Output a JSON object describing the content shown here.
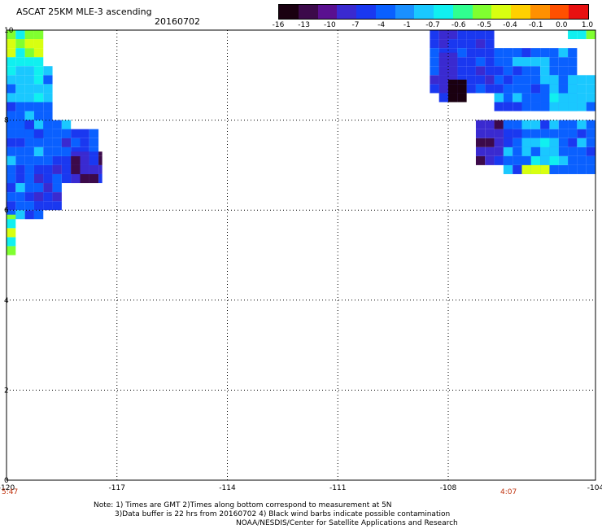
{
  "header": {
    "title": "ASCAT 25KM MLE-3 ascending",
    "date": "20160702"
  },
  "colorbar": {
    "labels": [
      "-16",
      "-13",
      "-10",
      "-7",
      "-4",
      "-1",
      "-0.7",
      "-0.6",
      "-0.5",
      "-0.4",
      "-0.1",
      "0.0",
      "1.0"
    ],
    "colors": [
      "#1a0010",
      "#3c0a4a",
      "#5a1090",
      "#3a2ad0",
      "#1a38f0",
      "#0a60ff",
      "#1a90ff",
      "#1ac8ff",
      "#10f0f0",
      "#30ff90",
      "#80ff30",
      "#d8ff10",
      "#ffd000",
      "#ff9000",
      "#ff5000",
      "#e81010"
    ]
  },
  "chart_data": {
    "type": "heatmap",
    "title": "ASCAT 25KM MLE-3 ascending",
    "subtitle": "20160702",
    "xlabel": "",
    "ylabel": "",
    "xlim": [
      -120,
      -104
    ],
    "ylim": [
      0,
      10
    ],
    "x_ticks": [
      -120,
      -117,
      -114,
      -111,
      -108,
      -104
    ],
    "y_ticks": [
      0,
      2,
      4,
      6,
      8,
      10
    ],
    "x_tick_labels": [
      "-120",
      "-117",
      "-114",
      "-111",
      "-108",
      "-104"
    ],
    "y_tick_labels": [
      "0",
      "2",
      "4",
      "6",
      "8",
      "10"
    ],
    "grid": true,
    "scale": [
      -16,
      -13,
      -10,
      -7,
      -4,
      -1,
      -0.7,
      -0.6,
      -0.5,
      -0.4,
      -0.1,
      0.0,
      1.0
    ],
    "cell_size_deg": 0.25,
    "regions": [
      {
        "lon": [
          -120,
          -119.0
        ],
        "lat": [
          9.2,
          10.0
        ],
        "value": -0.6
      },
      {
        "lon": [
          -120,
          -118.75
        ],
        "lat": [
          8.4,
          9.2
        ],
        "value": -1
      },
      {
        "lon": [
          -120,
          -118.75
        ],
        "lat": [
          7.6,
          8.4
        ],
        "value": -4
      },
      {
        "lon": [
          -119.5,
          -119.0
        ],
        "lat": [
          7.6,
          8.0
        ],
        "value": -10
      },
      {
        "lon": [
          -120,
          -118.25
        ],
        "lat": [
          7.0,
          8.0
        ],
        "value": -4
      },
      {
        "lon": [
          -118.5,
          -117.5
        ],
        "lat": [
          6.6,
          7.8
        ],
        "value": -7
      },
      {
        "lon": [
          -118.25,
          -117.4
        ],
        "lat": [
          6.6,
          7.3
        ],
        "value": -10
      },
      {
        "lon": [
          -120,
          -119.0
        ],
        "lat": [
          5.8,
          7.0
        ],
        "value": -4
      },
      {
        "lon": [
          -119.25,
          -118.5
        ],
        "lat": [
          6.0,
          7.0
        ],
        "value": -7
      },
      {
        "lon": [
          -120,
          -119.75
        ],
        "lat": [
          5.0,
          5.9
        ],
        "value": -0.6
      },
      {
        "lon": [
          -108.5,
          -106.75
        ],
        "lat": [
          8.6,
          10.0
        ],
        "value": -7
      },
      {
        "lon": [
          -108.25,
          -107.75
        ],
        "lat": [
          8.4,
          9.5
        ],
        "value": -10
      },
      {
        "lon": [
          -108.0,
          -107.5
        ],
        "lat": [
          8.4,
          8.9
        ],
        "value": -16
      },
      {
        "lon": [
          -106.75,
          -104.5
        ],
        "lat": [
          8.2,
          9.6
        ],
        "value": -4
      },
      {
        "lon": [
          -105.5,
          -104.0
        ],
        "lat": [
          8.2,
          9.0
        ],
        "value": -1
      },
      {
        "lon": [
          -104.75,
          -104.0
        ],
        "lat": [
          9.8,
          10.0
        ],
        "value": -0.6
      },
      {
        "lon": [
          -107.25,
          -106.25
        ],
        "lat": [
          7.0,
          8.0
        ],
        "value": -10
      },
      {
        "lon": [
          -106.5,
          -104.0
        ],
        "lat": [
          6.8,
          8.0
        ],
        "value": -4
      },
      {
        "lon": [
          -106.0,
          -105.0
        ],
        "lat": [
          6.8,
          7.6
        ],
        "value": -1
      },
      {
        "lon": [
          -106.0,
          -105.25
        ],
        "lat": [
          6.8,
          7.0
        ],
        "value": -0.5
      }
    ]
  },
  "footer": {
    "left_time": "5:47",
    "right_time": "4:07",
    "note_line1": "Note: 1) Times are GMT 2)Times along bottom correspond to measurement at 5N",
    "note_line2": "3)Data buffer is 22 hrs from 20160702 4) Black wind barbs indicate possible contamination",
    "note_line3": "NOAA/NESDIS/Center for Satellite Applications and Research"
  }
}
